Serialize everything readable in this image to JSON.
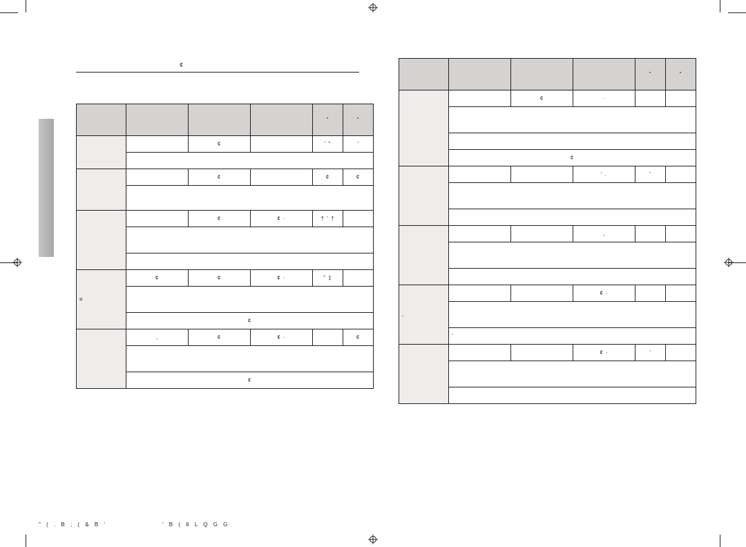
{
  "colors": {
    "ink": "#231f20",
    "headerFill": "#d4d3d2",
    "groupFill": "#eeedec",
    "tabFill": "#b9b8b8",
    "pageBg": "#ffffff"
  },
  "typography": {
    "bodyFontSizePt": 7,
    "titleFontSizePt": 9,
    "footerFontSizePt": 8
  },
  "title": {
    "glyph": "¢"
  },
  "footer": {
    "left": "\" (     . B ; ( & B '",
    "right": "'      B ( 6  L Q G G"
  },
  "leftTable": {
    "columnWidths": [
      "72px",
      "auto",
      "auto",
      "auto",
      "44px",
      "44px"
    ],
    "header": [
      "",
      "",
      "",
      "",
      "\"",
      "\""
    ],
    "rows": [
      {
        "type": "data",
        "group": "",
        "groupRowspan": 2,
        "cells": [
          "",
          "¢",
          "",
          "' \"",
          "'"
        ]
      },
      {
        "type": "note",
        "note": ""
      },
      {
        "type": "data",
        "group": "",
        "groupRowspan": 2,
        "cells": [
          "",
          "¢",
          "",
          "¢",
          "¢"
        ]
      },
      {
        "type": "note2",
        "note": ""
      },
      {
        "type": "data",
        "group": "",
        "groupRowspan": 3,
        "cells": [
          "",
          "¢",
          "¢  ·",
          "† ' †",
          ""
        ]
      },
      {
        "type": "desc",
        "note": ""
      },
      {
        "type": "note",
        "note": ""
      },
      {
        "type": "data",
        "group": "¤",
        "groupRowspan": 3,
        "cells": [
          "¢",
          "¢",
          "¢  ·",
          "\" ‡",
          ""
        ]
      },
      {
        "type": "desc",
        "note": ""
      },
      {
        "type": "center",
        "note": "¢"
      },
      {
        "type": "data",
        "group": "",
        "groupRowspan": 3,
        "cells": [
          ",",
          "¢",
          "¢  ·",
          "",
          "¢"
        ]
      },
      {
        "type": "desc",
        "note": ""
      },
      {
        "type": "center",
        "note": "¢"
      }
    ]
  },
  "rightTable": {
    "columnWidths": [
      "72px",
      "auto",
      "auto",
      "auto",
      "44px",
      "44px"
    ],
    "header": [
      "",
      "",
      "",
      "",
      "\"",
      "\""
    ],
    "rows": [
      {
        "type": "data",
        "group": "",
        "groupRowspan": 4,
        "cells": [
          "",
          "¢",
          "·",
          "",
          ""
        ]
      },
      {
        "type": "desc",
        "note": ""
      },
      {
        "type": "note",
        "note": ""
      },
      {
        "type": "center",
        "note": "¢"
      },
      {
        "type": "data",
        "group": "",
        "groupRowspan": 3,
        "cells": [
          "",
          "",
          "' .",
          "'",
          ""
        ]
      },
      {
        "type": "desc",
        "note": ""
      },
      {
        "type": "note",
        "note": ""
      },
      {
        "type": "data",
        "group": "",
        "groupRowspan": 3,
        "cells": [
          "",
          "",
          ",",
          "",
          ""
        ]
      },
      {
        "type": "desc",
        "note": ""
      },
      {
        "type": "note",
        "note": ""
      },
      {
        "type": "data",
        "group": ",",
        "groupRowspan": 3,
        "cells": [
          "",
          "",
          "¢  ·",
          "",
          ""
        ]
      },
      {
        "type": "desc",
        "note": ""
      },
      {
        "type": "note",
        "note": "'"
      },
      {
        "type": "data",
        "group": "",
        "groupRowspan": 3,
        "cells": [
          "",
          "",
          "¢  ·",
          "'",
          ""
        ]
      },
      {
        "type": "desc",
        "note": ""
      },
      {
        "type": "note",
        "note": ""
      }
    ]
  }
}
